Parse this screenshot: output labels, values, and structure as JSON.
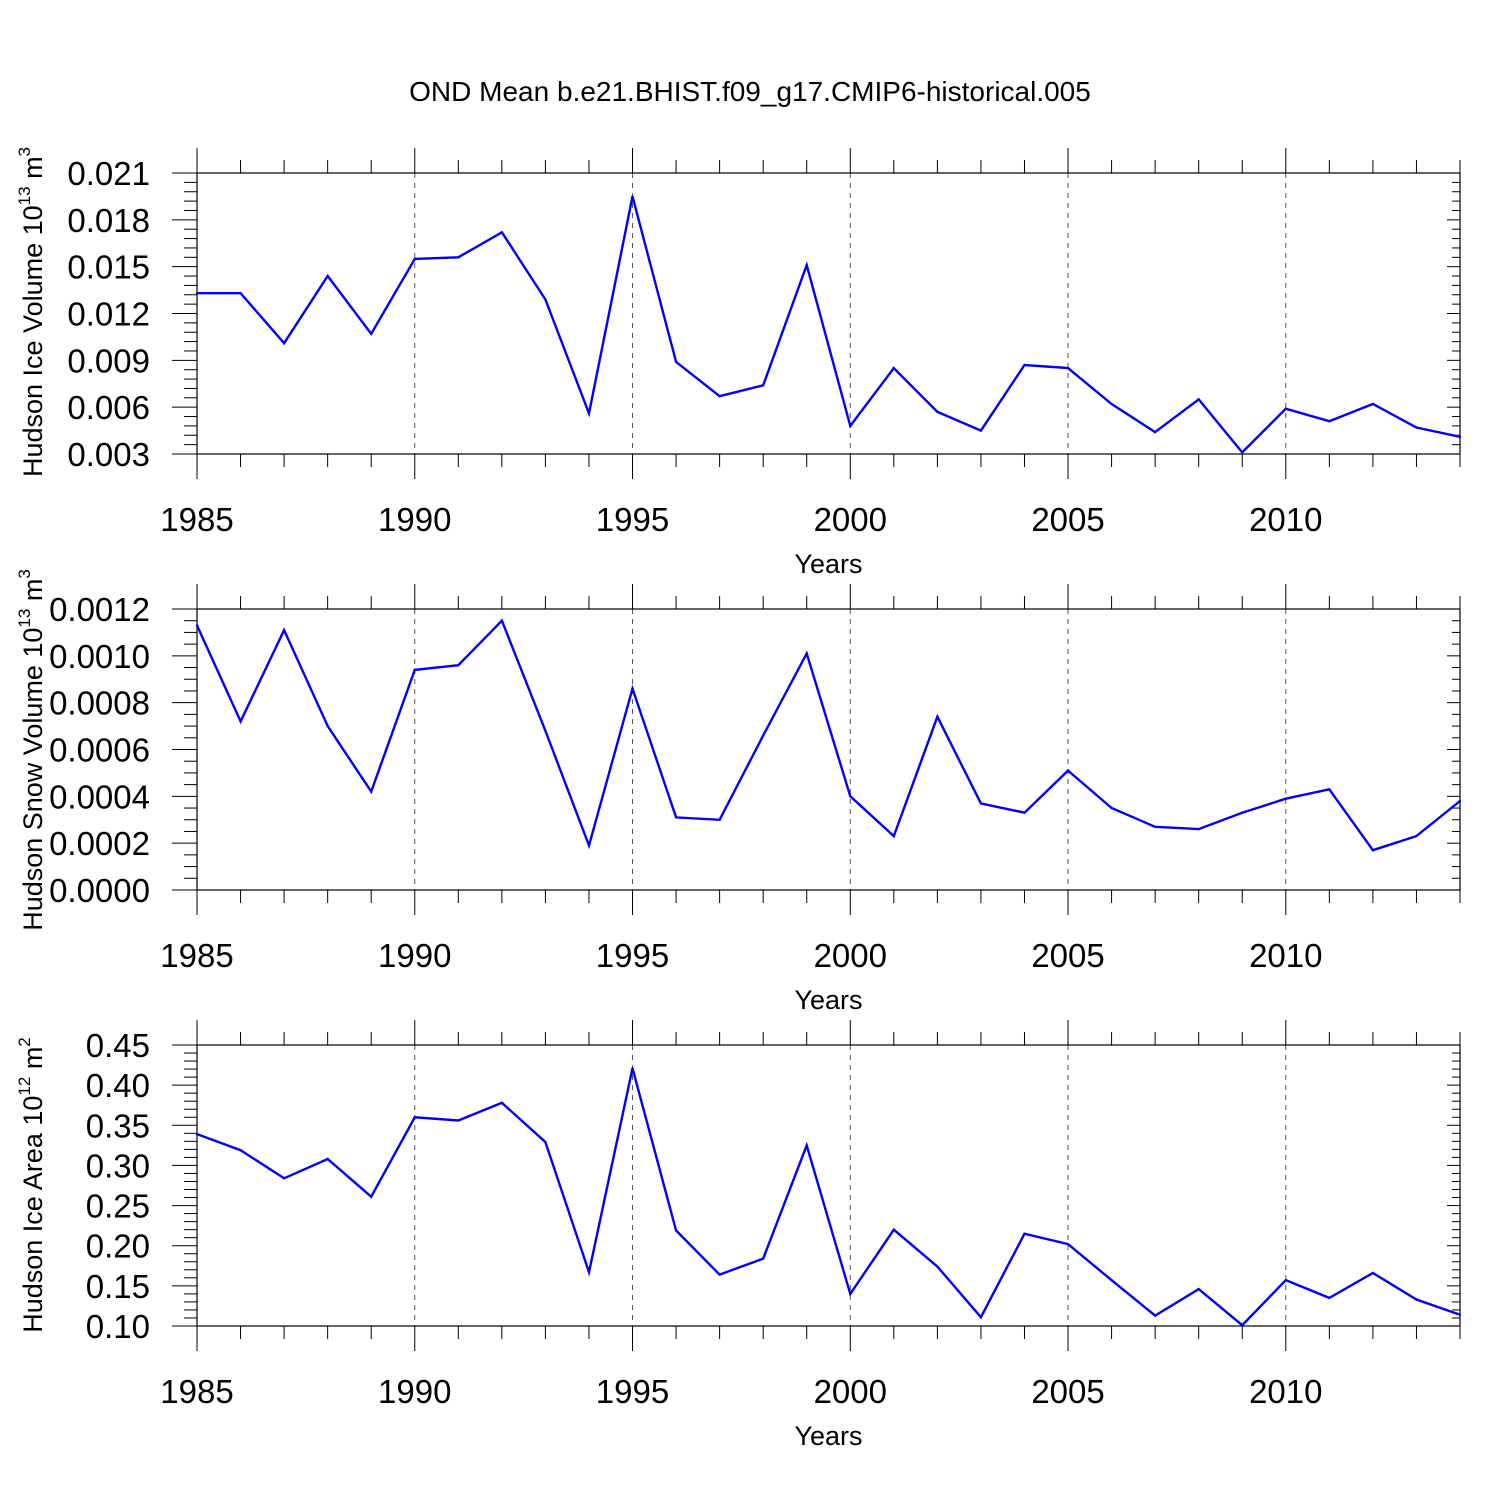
{
  "title": "OND Mean b.e21.BHIST.f09_g17.CMIP6-historical.005",
  "line_color": "#0000ff",
  "chart_data": [
    {
      "type": "line",
      "ylabel": {
        "text": "Hudson Ice Volume 10",
        "sup": "13",
        "unit": " m",
        "unit_sup": "3"
      },
      "xlabel": "Years",
      "xlim": [
        1985,
        2014
      ],
      "ylim": [
        0.003,
        0.021
      ],
      "ytick_step": 0.003,
      "ytick_decimals": 3,
      "yminor": 5,
      "x": [
        1985,
        1986,
        1987,
        1988,
        1989,
        1990,
        1991,
        1992,
        1993,
        1994,
        1995,
        1996,
        1997,
        1998,
        1999,
        2000,
        2001,
        2002,
        2003,
        2004,
        2005,
        2006,
        2007,
        2008,
        2009,
        2010,
        2011,
        2012,
        2013,
        2014
      ],
      "values": [
        0.0133,
        0.0133,
        0.0101,
        0.0144,
        0.0107,
        0.0155,
        0.0156,
        0.0172,
        0.0129,
        0.0056,
        0.0195,
        0.0089,
        0.0067,
        0.0074,
        0.0151,
        0.0048,
        0.0085,
        0.0057,
        0.0045,
        0.0087,
        0.0085,
        0.0062,
        0.0044,
        0.0065,
        0.0031,
        0.0059,
        0.0051,
        0.0062,
        0.0047,
        0.0041
      ],
      "xticks": [
        1985,
        1990,
        1995,
        2000,
        2005,
        2010
      ],
      "grid": "vertical dashed at major ticks"
    },
    {
      "type": "line",
      "ylabel": {
        "text": "Hudson Snow Volume 10",
        "sup": "13",
        "unit": " m",
        "unit_sup": "3"
      },
      "xlabel": "Years",
      "xlim": [
        1985,
        2014
      ],
      "ylim": [
        0.0,
        0.0012
      ],
      "ytick_step": 0.0002,
      "ytick_decimals": 4,
      "yminor": 4,
      "x": [
        1985,
        1986,
        1987,
        1988,
        1989,
        1990,
        1991,
        1992,
        1993,
        1994,
        1995,
        1996,
        1997,
        1998,
        1999,
        2000,
        2001,
        2002,
        2003,
        2004,
        2005,
        2006,
        2007,
        2008,
        2009,
        2010,
        2011,
        2012,
        2013,
        2014
      ],
      "values": [
        0.00113,
        0.00072,
        0.00111,
        0.0007,
        0.00042,
        0.00094,
        0.00096,
        0.00115,
        0.00068,
        0.00019,
        0.00086,
        0.00031,
        0.0003,
        0.00066,
        0.00101,
        0.0004,
        0.00023,
        0.00074,
        0.00037,
        0.00033,
        0.00051,
        0.00035,
        0.00027,
        0.00026,
        0.00033,
        0.00039,
        0.00043,
        0.00017,
        0.00023,
        0.00038
      ],
      "xticks": [
        1985,
        1990,
        1995,
        2000,
        2005,
        2010
      ],
      "grid": "vertical dashed at major ticks"
    },
    {
      "type": "line",
      "ylabel": {
        "text": "Hudson Ice Area 10",
        "sup": "12",
        "unit": " m",
        "unit_sup": "2"
      },
      "xlabel": "Years",
      "xlim": [
        1985,
        2014
      ],
      "ylim": [
        0.1,
        0.45
      ],
      "ytick_step": 0.05,
      "ytick_decimals": 2,
      "yminor": 5,
      "x": [
        1985,
        1986,
        1987,
        1988,
        1989,
        1990,
        1991,
        1992,
        1993,
        1994,
        1995,
        1996,
        1997,
        1998,
        1999,
        2000,
        2001,
        2002,
        2003,
        2004,
        2005,
        2006,
        2007,
        2008,
        2009,
        2010,
        2011,
        2012,
        2013,
        2014
      ],
      "values": [
        0.339,
        0.319,
        0.284,
        0.308,
        0.261,
        0.36,
        0.356,
        0.378,
        0.329,
        0.167,
        0.421,
        0.219,
        0.164,
        0.184,
        0.325,
        0.14,
        0.22,
        0.174,
        0.111,
        0.215,
        0.202,
        0.157,
        0.113,
        0.146,
        0.101,
        0.157,
        0.135,
        0.166,
        0.133,
        0.114
      ],
      "xticks": [
        1985,
        1990,
        1995,
        2000,
        2005,
        2010
      ],
      "grid": "vertical dashed at major ticks"
    }
  ]
}
